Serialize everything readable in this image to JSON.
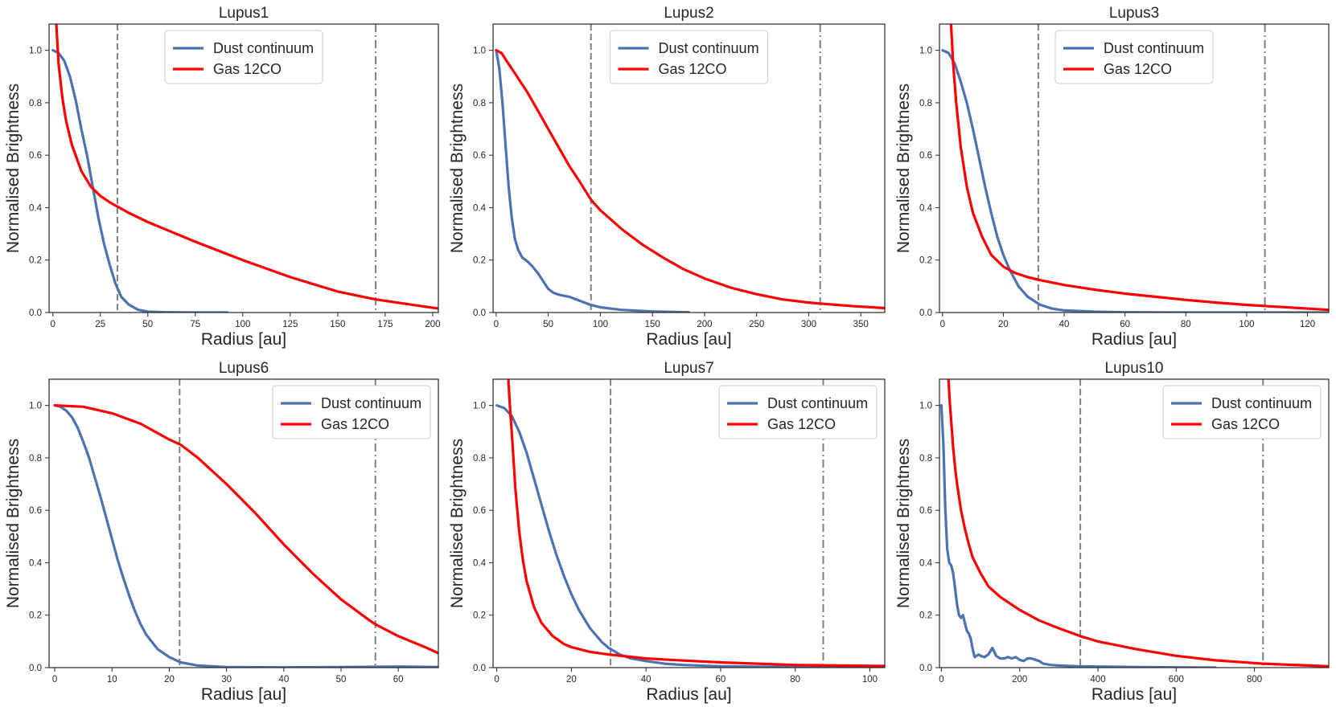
{
  "figure": {
    "legend": {
      "dust_label": "Dust continuum",
      "gas_label": "Gas 12CO"
    },
    "colors": {
      "dust": "#4c72b0",
      "gas": "#ff0000",
      "vline": "#808080"
    }
  },
  "chart_data": [
    {
      "type": "line",
      "title": "Lupus1",
      "xlabel": "Radius [au]",
      "ylabel": "Normalised Brightness",
      "xlim": [
        -2,
        203
      ],
      "ylim": [
        0,
        1.1
      ],
      "xticks": [
        0,
        25,
        50,
        75,
        100,
        125,
        150,
        175,
        200
      ],
      "yticks": [
        0.0,
        0.2,
        0.4,
        0.6,
        0.8,
        1.0
      ],
      "legend_position": "upper-center",
      "dust_rmax": 92,
      "vlines": {
        "dashed": 34,
        "dashdot": 170
      },
      "series": [
        {
          "name": "Dust continuum",
          "x": [
            0,
            3,
            6,
            9,
            12,
            15,
            18,
            21,
            24,
            27,
            30,
            33,
            36,
            40,
            45,
            50,
            60,
            75,
            92
          ],
          "y": [
            1.0,
            0.99,
            0.96,
            0.9,
            0.81,
            0.7,
            0.6,
            0.48,
            0.36,
            0.26,
            0.18,
            0.11,
            0.06,
            0.03,
            0.01,
            0.003,
            0.001,
            0.0,
            0.0
          ]
        },
        {
          "name": "Gas 12CO",
          "x": [
            1.8,
            3,
            5,
            7,
            10,
            15,
            20,
            25,
            30,
            35,
            40,
            50,
            60,
            75,
            100,
            125,
            150,
            170,
            203
          ],
          "y": [
            1.1,
            0.95,
            0.82,
            0.73,
            0.64,
            0.54,
            0.48,
            0.445,
            0.42,
            0.4,
            0.38,
            0.345,
            0.315,
            0.27,
            0.2,
            0.135,
            0.08,
            0.05,
            0.015
          ]
        }
      ]
    },
    {
      "type": "line",
      "title": "Lupus2",
      "xlabel": "Radius [au]",
      "ylabel": "Normalised Brightness",
      "xlim": [
        -3,
        373
      ],
      "ylim": [
        0,
        1.1
      ],
      "xticks": [
        0,
        50,
        100,
        150,
        200,
        250,
        300,
        350
      ],
      "yticks": [
        0.0,
        0.2,
        0.4,
        0.6,
        0.8,
        1.0
      ],
      "legend_position": "upper-center",
      "dust_rmax": 185,
      "vlines": {
        "dashed": 91,
        "dashdot": 311
      },
      "series": [
        {
          "name": "Dust continuum",
          "x": [
            0,
            3,
            6,
            9,
            12,
            15,
            18,
            21,
            25,
            30,
            35,
            40,
            45,
            50,
            55,
            60,
            70,
            80,
            90,
            100,
            120,
            150,
            185
          ],
          "y": [
            1.0,
            0.93,
            0.8,
            0.64,
            0.48,
            0.36,
            0.28,
            0.24,
            0.21,
            0.195,
            0.175,
            0.15,
            0.12,
            0.09,
            0.075,
            0.068,
            0.06,
            0.045,
            0.03,
            0.02,
            0.01,
            0.004,
            0.001
          ]
        },
        {
          "name": "Gas 12CO",
          "x": [
            0,
            5,
            10,
            20,
            30,
            40,
            50,
            60,
            70,
            80,
            91,
            100,
            120,
            140,
            160,
            180,
            200,
            225,
            250,
            275,
            300,
            311,
            340,
            373
          ],
          "y": [
            1.0,
            0.99,
            0.96,
            0.9,
            0.84,
            0.77,
            0.7,
            0.63,
            0.56,
            0.5,
            0.43,
            0.39,
            0.32,
            0.26,
            0.21,
            0.165,
            0.13,
            0.095,
            0.07,
            0.05,
            0.038,
            0.034,
            0.025,
            0.017
          ]
        }
      ]
    },
    {
      "type": "line",
      "title": "Lupus3",
      "xlabel": "Radius [au]",
      "ylabel": "Normalised Brightness",
      "xlim": [
        -1,
        127
      ],
      "ylim": [
        0,
        1.1
      ],
      "xticks": [
        0,
        20,
        40,
        60,
        80,
        100,
        120
      ],
      "yticks": [
        0.0,
        0.2,
        0.4,
        0.6,
        0.8,
        1.0
      ],
      "legend_position": "upper-center",
      "dust_rmax": 127,
      "vlines": {
        "dashed": 31.5,
        "dashdot": 106
      },
      "series": [
        {
          "name": "Dust continuum",
          "x": [
            0,
            2,
            4,
            6,
            8,
            10,
            12,
            14,
            16,
            18,
            20,
            22,
            25,
            28,
            32,
            36,
            40,
            50,
            60,
            80,
            100,
            127
          ],
          "y": [
            1.0,
            0.99,
            0.95,
            0.88,
            0.8,
            0.7,
            0.59,
            0.48,
            0.38,
            0.29,
            0.22,
            0.165,
            0.1,
            0.06,
            0.03,
            0.015,
            0.008,
            0.003,
            0.001,
            0.0,
            0.0,
            0.0
          ]
        },
        {
          "name": "Gas 12CO",
          "x": [
            2.8,
            3.5,
            4.5,
            6,
            8,
            10,
            13,
            16,
            20,
            24,
            28,
            31.5,
            40,
            50,
            60,
            70,
            80,
            90,
            100,
            110,
            127
          ],
          "y": [
            1.1,
            0.95,
            0.8,
            0.63,
            0.48,
            0.38,
            0.29,
            0.22,
            0.175,
            0.15,
            0.135,
            0.125,
            0.105,
            0.087,
            0.072,
            0.06,
            0.048,
            0.038,
            0.029,
            0.022,
            0.01
          ]
        }
      ]
    },
    {
      "type": "line",
      "title": "Lupus6",
      "xlabel": "Radius [au]",
      "ylabel": "Normalised Brightness",
      "xlim": [
        -1,
        67
      ],
      "ylim": [
        0,
        1.1
      ],
      "xticks": [
        0,
        10,
        20,
        30,
        40,
        50,
        60
      ],
      "yticks": [
        0.0,
        0.2,
        0.4,
        0.6,
        0.8,
        1.0
      ],
      "legend_position": "upper-right",
      "dust_rmax": 67,
      "vlines": {
        "dashed": 21.8,
        "dashdot": 56
      },
      "series": [
        {
          "name": "Dust continuum",
          "x": [
            0,
            1,
            2,
            3,
            4,
            5,
            6,
            7,
            8,
            9,
            10,
            11,
            12,
            13,
            14,
            15,
            16,
            18,
            20,
            22,
            25,
            30,
            40,
            50,
            60,
            67
          ],
          "y": [
            1.0,
            0.995,
            0.98,
            0.955,
            0.915,
            0.86,
            0.8,
            0.725,
            0.65,
            0.57,
            0.49,
            0.41,
            0.34,
            0.275,
            0.215,
            0.165,
            0.125,
            0.07,
            0.04,
            0.02,
            0.008,
            0.002,
            0.001,
            0.002,
            0.004,
            0.002
          ]
        },
        {
          "name": "Gas 12CO",
          "x": [
            0,
            5,
            10,
            15,
            20,
            22,
            25,
            30,
            35,
            40,
            45,
            50,
            55,
            56,
            60,
            65,
            67
          ],
          "y": [
            1.0,
            0.995,
            0.97,
            0.93,
            0.87,
            0.85,
            0.8,
            0.7,
            0.59,
            0.47,
            0.36,
            0.26,
            0.18,
            0.165,
            0.12,
            0.075,
            0.055
          ]
        }
      ]
    },
    {
      "type": "line",
      "title": "Lupus7",
      "xlabel": "Radius [au]",
      "ylabel": "Normalised Brightness",
      "xlim": [
        -1,
        104
      ],
      "ylim": [
        0,
        1.1
      ],
      "xticks": [
        0,
        20,
        40,
        60,
        80,
        100
      ],
      "yticks": [
        0.0,
        0.2,
        0.4,
        0.6,
        0.8,
        1.0
      ],
      "legend_position": "upper-right",
      "dust_rmax": 104,
      "vlines": {
        "dashed": 30.5,
        "dashdot": 87.5
      },
      "series": [
        {
          "name": "Dust continuum",
          "x": [
            0,
            2,
            4,
            6,
            8,
            10,
            12,
            14,
            16,
            18,
            20,
            22,
            25,
            28,
            30,
            33,
            36,
            40,
            45,
            50,
            60,
            80,
            104
          ],
          "y": [
            1.0,
            0.99,
            0.96,
            0.9,
            0.82,
            0.72,
            0.62,
            0.52,
            0.43,
            0.35,
            0.28,
            0.22,
            0.15,
            0.1,
            0.075,
            0.05,
            0.035,
            0.025,
            0.015,
            0.01,
            0.005,
            0.002,
            0.001
          ]
        },
        {
          "name": "Gas 12CO",
          "x": [
            3.1,
            3.5,
            4,
            5,
            6,
            7,
            8,
            10,
            12,
            15,
            18,
            20,
            25,
            30,
            40,
            50,
            60,
            70,
            80,
            90,
            104
          ],
          "y": [
            1.1,
            1.0,
            0.9,
            0.68,
            0.52,
            0.41,
            0.33,
            0.23,
            0.17,
            0.12,
            0.09,
            0.078,
            0.06,
            0.05,
            0.035,
            0.027,
            0.02,
            0.015,
            0.01,
            0.008,
            0.006
          ]
        }
      ]
    },
    {
      "type": "line",
      "title": "Lupus10",
      "xlabel": "Radius [au]",
      "ylabel": "Normalised Brightness",
      "xlim": [
        -5,
        990
      ],
      "ylim": [
        0,
        1.1
      ],
      "xticks": [
        0,
        200,
        400,
        600,
        800
      ],
      "yticks": [
        0.0,
        0.2,
        0.4,
        0.6,
        0.8,
        1.0
      ],
      "legend_position": "upper-right",
      "dust_rmax": 700,
      "vlines": {
        "dashed": 355,
        "dashdot": 822
      },
      "series": [
        {
          "name": "Dust continuum",
          "x": [
            0,
            5,
            10,
            15,
            20,
            25,
            30,
            35,
            40,
            45,
            50,
            55,
            60,
            65,
            70,
            75,
            80,
            85,
            90,
            95,
            100,
            110,
            120,
            130,
            140,
            150,
            160,
            170,
            180,
            190,
            200,
            210,
            220,
            230,
            240,
            250,
            260,
            280,
            300,
            350,
            400,
            500,
            600,
            700
          ],
          "y": [
            1.0,
            0.85,
            0.6,
            0.45,
            0.4,
            0.39,
            0.36,
            0.3,
            0.24,
            0.2,
            0.19,
            0.2,
            0.17,
            0.14,
            0.13,
            0.11,
            0.07,
            0.04,
            0.045,
            0.05,
            0.045,
            0.04,
            0.05,
            0.075,
            0.045,
            0.035,
            0.035,
            0.04,
            0.035,
            0.04,
            0.03,
            0.025,
            0.035,
            0.035,
            0.03,
            0.025,
            0.015,
            0.01,
            0.008,
            0.005,
            0.004,
            0.002,
            0.001,
            0.0
          ]
        },
        {
          "name": "Gas 12CO",
          "x": [
            18,
            22,
            26,
            30,
            35,
            40,
            50,
            60,
            70,
            80,
            100,
            120,
            150,
            200,
            250,
            300,
            355,
            400,
            500,
            600,
            700,
            822,
            990
          ],
          "y": [
            1.1,
            1.0,
            0.92,
            0.84,
            0.76,
            0.7,
            0.6,
            0.53,
            0.47,
            0.42,
            0.36,
            0.31,
            0.27,
            0.22,
            0.18,
            0.15,
            0.12,
            0.1,
            0.07,
            0.045,
            0.028,
            0.015,
            0.005
          ]
        }
      ]
    }
  ]
}
